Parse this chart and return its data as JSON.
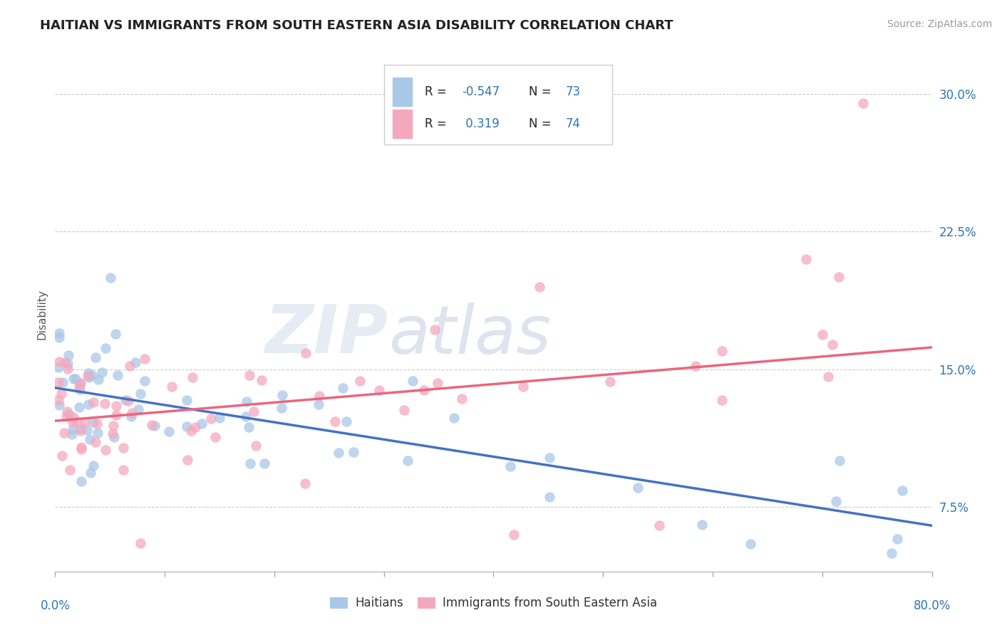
{
  "title": "HAITIAN VS IMMIGRANTS FROM SOUTH EASTERN ASIA DISABILITY CORRELATION CHART",
  "source": "Source: ZipAtlas.com",
  "ylabel": "Disability",
  "xlim": [
    0.0,
    80.0
  ],
  "ylim": [
    4.0,
    32.0
  ],
  "yticks": [
    7.5,
    15.0,
    22.5,
    30.0
  ],
  "ytick_labels": [
    "7.5%",
    "15.0%",
    "22.5%",
    "30.0%"
  ],
  "xticks": [
    0,
    10,
    20,
    30,
    40,
    50,
    60,
    70,
    80
  ],
  "color_haitian": "#a8c8e8",
  "color_sea": "#f4a8be",
  "color_haitian_line": "#4472c4",
  "color_sea_line": "#e96680",
  "color_axis": "#2e75b6",
  "watermark_zip": "ZIP",
  "watermark_atlas": "atlas",
  "haitian_line_x0": 0,
  "haitian_line_y0": 14.0,
  "haitian_line_x1": 80,
  "haitian_line_y1": 6.5,
  "sea_line_x0": 0,
  "sea_line_y0": 12.2,
  "sea_line_x1": 80,
  "sea_line_y1": 16.2
}
